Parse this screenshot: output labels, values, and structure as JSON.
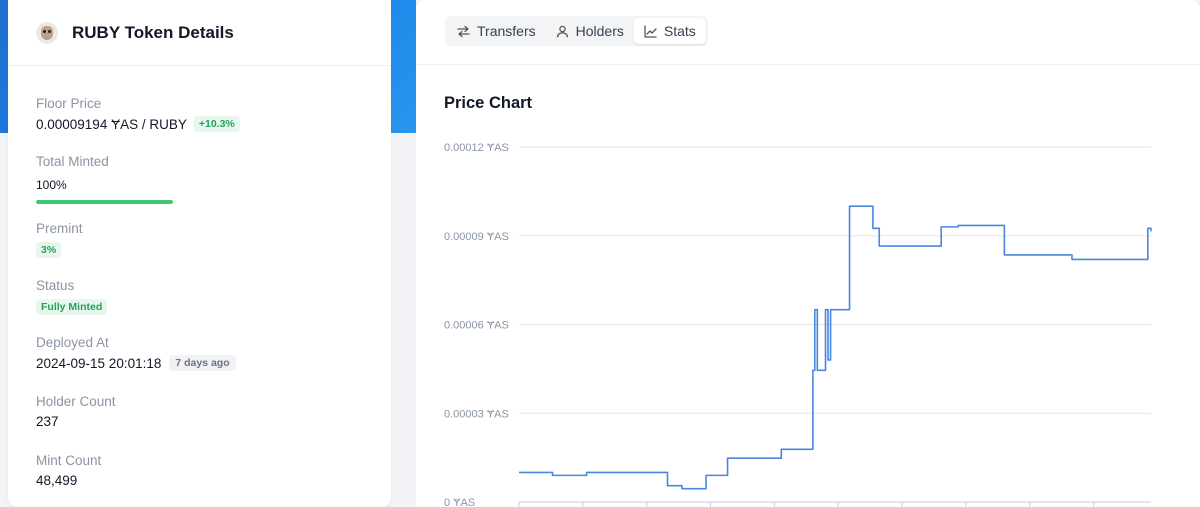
{
  "token": {
    "title": "RUBY Token Details"
  },
  "fields": {
    "floor_price": {
      "label": "Floor Price",
      "value": "0.00009194 ɎAS / RUBY",
      "change": "+10.3%"
    },
    "total_minted": {
      "label": "Total Minted",
      "value": "100%",
      "progress": 1.0
    },
    "premint": {
      "label": "Premint",
      "value": "3%"
    },
    "status": {
      "label": "Status",
      "value": "Fully Minted"
    },
    "deployed_at": {
      "label": "Deployed At",
      "value": "2024-09-15 20:01:18",
      "relative": "7 days ago"
    },
    "holder_count": {
      "label": "Holder Count",
      "value": "237"
    },
    "mint_count": {
      "label": "Mint Count",
      "value": "48,499"
    }
  },
  "tabs": [
    {
      "label": "Transfers",
      "icon": "transfer-arrows-icon",
      "active": false
    },
    {
      "label": "Holders",
      "icon": "user-icon",
      "active": false
    },
    {
      "label": "Stats",
      "icon": "line-chart-icon",
      "active": true
    }
  ],
  "colors": {
    "accent_green": "#3cc770",
    "line": "#4a86e0",
    "header_blue": "#1a86e8"
  },
  "chart_data": {
    "type": "line",
    "title": "Price Chart",
    "xlabel": "",
    "ylabel": "",
    "ylim": [
      0,
      0.00012
    ],
    "y_ticks": [
      "0 ɎAS",
      "0.00003 ɎAS",
      "0.00006 ɎAS",
      "0.00009 ɎAS",
      "0.00012 ɎAS"
    ],
    "y_tick_values": [
      0,
      3e-05,
      6e-05,
      9e-05,
      0.00012
    ],
    "grid": true,
    "x_tick_count": 10,
    "series": [
      {
        "step": true,
        "x": [
          0,
          0.053,
          0.107,
          0.216,
          0.235,
          0.258,
          0.296,
          0.33,
          0.355,
          0.415,
          0.465,
          0.468,
          0.472,
          0.485,
          0.489,
          0.493,
          0.519,
          0.523,
          0.547,
          0.56,
          0.57,
          0.66,
          0.668,
          0.695,
          0.768,
          0.875,
          0.995,
          1.0
        ],
        "y": [
          1e-05,
          9e-06,
          1e-05,
          1e-05,
          5.5e-06,
          4.5e-06,
          9e-06,
          1.48e-05,
          1.48e-05,
          1.78e-05,
          4.45e-05,
          6.5e-05,
          4.45e-05,
          6.5e-05,
          4.8e-05,
          6.5e-05,
          6.5e-05,
          0.0001,
          0.0001,
          9.25e-05,
          8.65e-05,
          8.65e-05,
          9.3e-05,
          9.35e-05,
          8.35e-05,
          8.2e-05,
          9.25e-05,
          9.15e-05
        ]
      }
    ]
  }
}
